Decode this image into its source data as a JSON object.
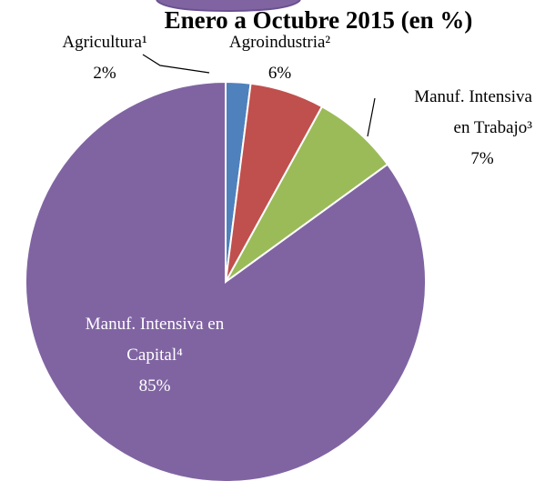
{
  "chart_data": {
    "type": "pie",
    "title": "Enero a Octubre 2015 (en %)",
    "categories": [
      "Agricultura¹",
      "Agroindustria²",
      "Manuf. Intensiva en Trabajo³",
      "Manuf. Intensiva en Capital⁴"
    ],
    "values": [
      2,
      6,
      7,
      85
    ],
    "value_labels": [
      "2%",
      "6%",
      "7%",
      "85%"
    ],
    "colors": [
      "#4f81bd",
      "#c0504d",
      "#9bbb59",
      "#8064a2"
    ]
  }
}
